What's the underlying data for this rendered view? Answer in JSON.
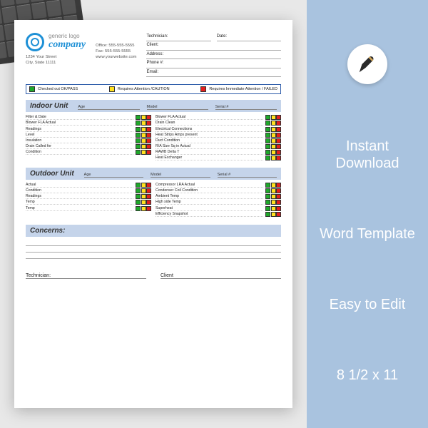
{
  "logo": {
    "line1": "generic logo",
    "line2": "company"
  },
  "address": {
    "street": "1234 Your Street",
    "city": "City, State 11111"
  },
  "contact": {
    "office": "Office: 555-555-5555",
    "fax": "Fax: 555-555-5555",
    "web": "www.yourwebsite.com"
  },
  "form_fields": {
    "tech": "Technician:",
    "date": "Date:",
    "client": "Client:",
    "addr": "Address:",
    "phone": "Phone #:",
    "email": "Email:"
  },
  "legend": {
    "pass": "Checked out OK/PASS",
    "caution": "Requires Attention /CAUTION",
    "fail": "Requires Immediate Attention / FAILED"
  },
  "sections": {
    "indoor": {
      "title": "Indoor Unit",
      "meta": {
        "age": "Age",
        "model": "Model",
        "serial": "Serial #"
      },
      "left": [
        "Filter & Date",
        "Blower FLA         Actual",
        "Readings",
        "Level",
        "Insulation",
        "Drain Called for",
        "Condition"
      ],
      "right": [
        "Blower FLA         Actual",
        "Drain Clean",
        "Electrical Connections",
        "Heat Strips Amps present",
        "Duct Condition",
        "R/A Size Sq in Actual",
        "RAWB       Delta T",
        "Heat Exchanger"
      ]
    },
    "outdoor": {
      "title": "Outdoor Unit",
      "meta": {
        "age": "Age",
        "model": "Model",
        "serial": "Serial #"
      },
      "left": [
        "Actual",
        "Condition",
        "Readings",
        "Temp",
        "Temp"
      ],
      "right": [
        "Compressor LRA      Actual",
        "Condenser Coil Condition",
        "Ambient Temp",
        "High side Temp",
        "Superheat",
        "Efficiency Snapshot"
      ]
    }
  },
  "concerns": "Concerns:",
  "sign": {
    "tech": "Technician:",
    "client": "Client"
  },
  "side": {
    "b1": "Instant Download",
    "b2": "Word Template",
    "b3": "Easy to Edit",
    "b4": "8 1/2 x 11"
  },
  "colors": {
    "side_bg": "#a9c3df",
    "accent": "#1e90d6",
    "green": "#1fa82a",
    "yellow": "#ffe21f",
    "red": "#e21f1f",
    "section_bg": "#c5d4ea"
  }
}
